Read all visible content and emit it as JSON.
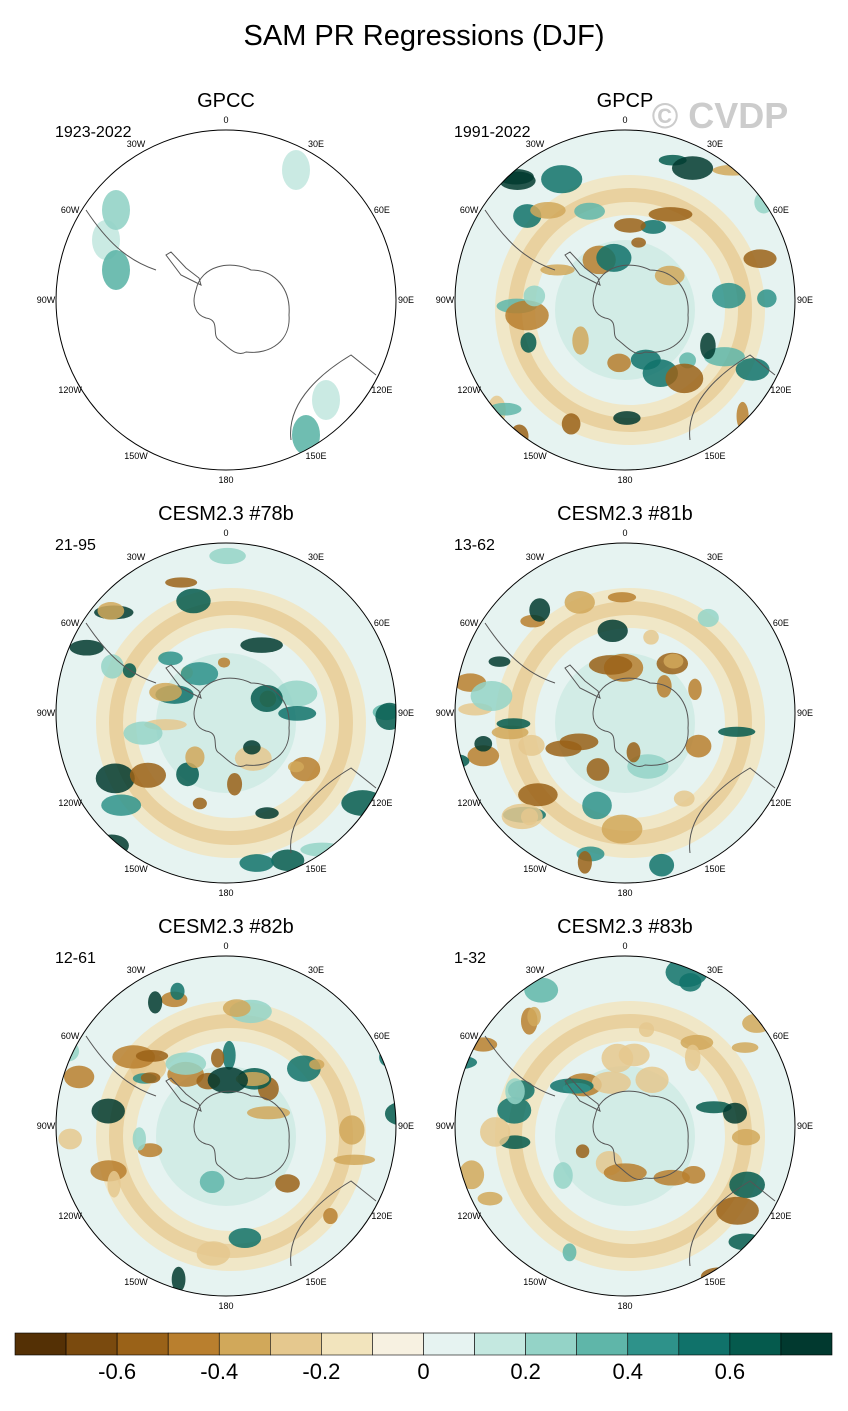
{
  "title": "SAM PR Regressions (DJF)",
  "watermark": "© CVDP",
  "panels": [
    {
      "title": "GPCC",
      "period": "1923-2022"
    },
    {
      "title": "GPCP",
      "period": "1991-2022"
    },
    {
      "title": "CESM2.3 #78b",
      "period": "21-95"
    },
    {
      "title": "CESM2.3 #81b",
      "period": "13-62"
    },
    {
      "title": "CESM2.3 #82b",
      "period": "12-61"
    },
    {
      "title": "CESM2.3 #83b",
      "period": "1-32"
    }
  ],
  "longitude_labels": [
    "0",
    "30E",
    "60E",
    "90E",
    "120E",
    "150E",
    "180",
    "150W",
    "120W",
    "90W",
    "60W",
    "30W"
  ],
  "colorbar": {
    "range": [
      -0.8,
      0.8
    ],
    "colors": [
      "#543005",
      "#7a4a0e",
      "#9a6218",
      "#b97f2e",
      "#d1a85a",
      "#e5c88e",
      "#f2e4bd",
      "#f7f1e1",
      "#e6f3f1",
      "#c4e8e0",
      "#94d3c7",
      "#5fb6a9",
      "#2e928a",
      "#10726a",
      "#055a4d",
      "#01392f"
    ],
    "ticks": [
      -0.6,
      -0.4,
      -0.2,
      0,
      0.2,
      0.4,
      0.6
    ]
  }
}
